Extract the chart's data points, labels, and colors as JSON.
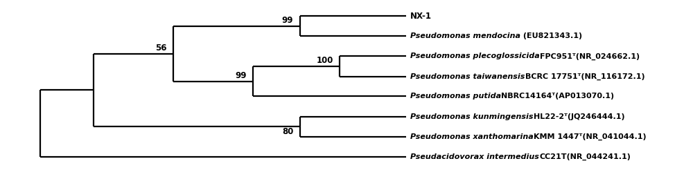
{
  "figsize": [
    10.0,
    2.46
  ],
  "dpi": 100,
  "lw": 1.6,
  "font_size_taxa": 8.0,
  "font_size_bootstrap": 8.5,
  "y_positions": [
    1.0,
    0.857,
    0.714,
    0.571,
    0.429,
    0.286,
    0.143,
    0.0
  ],
  "taxa_italic": [
    "NX-1",
    "Pseudomonas mendocina",
    "Pseudomonas plecoglossicida",
    "Pseudomonas taiwanensis",
    "Pseudomonas putida",
    "Pseudomonas kunmingensis",
    "Pseudomonas xanthomarina",
    "Pseudacidovorax intermedius"
  ],
  "taxa_normal": [
    "",
    " (EU821343.1)",
    "FPC951ᵀ(NR_024662.1)",
    "BCRC 17751ᵀ(NR_116172.1)",
    "NBRC14164ᵀ(AP013070.1)",
    "HL22-2ᵀ(JQ246444.1)",
    "KMM 1447ᵀ(NR_041044.1)",
    "CC21T(NR_044241.1)"
  ],
  "xlim": [
    0.0,
    1.02
  ],
  "ylim": [
    -0.07,
    1.09
  ]
}
